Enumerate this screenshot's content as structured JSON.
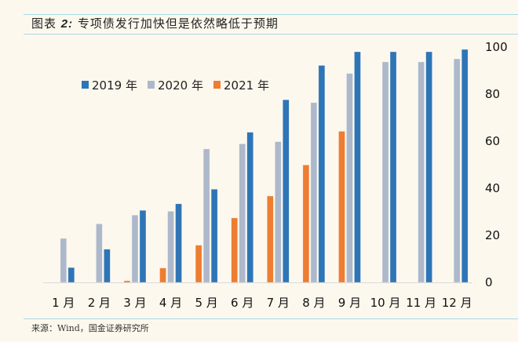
{
  "header": {
    "prefix": "图表 ",
    "number": "2:",
    "title": " 专项债发行加快但是依然略低于预期"
  },
  "source": "来源：Wind，国金证券研究所",
  "chart_data": {
    "type": "bar",
    "title": "专项债发行加快但是依然略低于预期",
    "xlabel": "",
    "ylabel": "",
    "ylim": [
      0,
      100
    ],
    "yticks": [
      0,
      20,
      40,
      60,
      80,
      100
    ],
    "y_axis_position": "right",
    "grid": false,
    "legend_position": "top-left",
    "categories": [
      "1月",
      "2月",
      "3月",
      "4月",
      "5月",
      "6月",
      "7月",
      "8月",
      "9月",
      "10月",
      "11月",
      "12月"
    ],
    "series": [
      {
        "name": "2021 年",
        "color": "#ed7d31",
        "values": [
          null,
          null,
          0.7,
          6.1,
          15.8,
          27.4,
          36.7,
          49.9,
          64.2,
          null,
          null,
          null
        ]
      },
      {
        "name": "2020 年",
        "color": "#adb9ca",
        "values": [
          18.7,
          24.9,
          28.6,
          30.2,
          56.7,
          58.9,
          59.8,
          76.4,
          88.8,
          93.7,
          93.7,
          95.0
        ]
      },
      {
        "name": "2019 年",
        "color": "#2e75b6",
        "values": [
          6.3,
          14.1,
          30.6,
          33.4,
          39.6,
          63.8,
          77.6,
          92.2,
          98.0,
          98.0,
          98.0,
          99.0
        ]
      }
    ],
    "legend_order": [
      "2019 年",
      "2020 年",
      "2021 年"
    ]
  }
}
